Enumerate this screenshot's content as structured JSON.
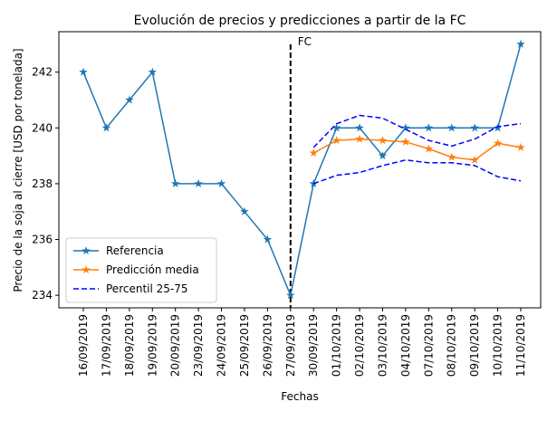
{
  "chart_data": {
    "type": "line",
    "title": "Evolución de precios y predicciones a partir de la FC",
    "x_label": "Fechas",
    "y_label": "Precio de la soja al cierre [USD por tonelada]",
    "categories": [
      "16/09/2019",
      "17/09/2019",
      "18/09/2019",
      "19/09/2019",
      "20/09/2019",
      "23/09/2019",
      "24/09/2019",
      "25/09/2019",
      "26/09/2019",
      "27/09/2019",
      "30/09/2019",
      "01/10/2019",
      "02/10/2019",
      "03/10/2019",
      "04/10/2019",
      "07/10/2019",
      "08/10/2019",
      "09/10/2019",
      "10/10/2019",
      "11/10/2019"
    ],
    "series": [
      {
        "name": "Referencia",
        "color": "#1f77b4",
        "style": "solid",
        "marker": "star",
        "values": [
          242,
          240,
          241,
          242,
          238,
          238,
          238,
          237,
          236,
          234,
          238,
          240,
          240,
          239,
          240,
          240,
          240,
          240,
          240,
          243
        ]
      },
      {
        "name": "Predicción media",
        "color": "#ff7f0e",
        "style": "solid",
        "marker": "star",
        "values": [
          null,
          null,
          null,
          null,
          null,
          null,
          null,
          null,
          null,
          null,
          239.1,
          239.55,
          239.6,
          239.55,
          239.5,
          239.25,
          238.95,
          238.85,
          239.45,
          239.3
        ]
      },
      {
        "name": "Percentil 25-75",
        "color": "#0000ff",
        "style": "dashed",
        "marker": "none",
        "values": [
          null,
          null,
          null,
          null,
          null,
          null,
          null,
          null,
          null,
          null,
          238.0,
          238.3,
          238.4,
          238.65,
          238.85,
          238.75,
          238.75,
          238.65,
          238.25,
          238.1
        ],
        "values_upper": [
          null,
          null,
          null,
          null,
          null,
          null,
          null,
          null,
          null,
          null,
          239.3,
          240.15,
          240.45,
          240.35,
          239.95,
          239.55,
          239.35,
          239.6,
          240.05,
          240.15
        ]
      }
    ],
    "vline": {
      "at": "27/09/2019",
      "label": "FC",
      "color": "#000000"
    },
    "ylim": [
      233.55,
      243.45
    ],
    "yticks": [
      234,
      236,
      238,
      240,
      242
    ],
    "legend": "lower left"
  }
}
